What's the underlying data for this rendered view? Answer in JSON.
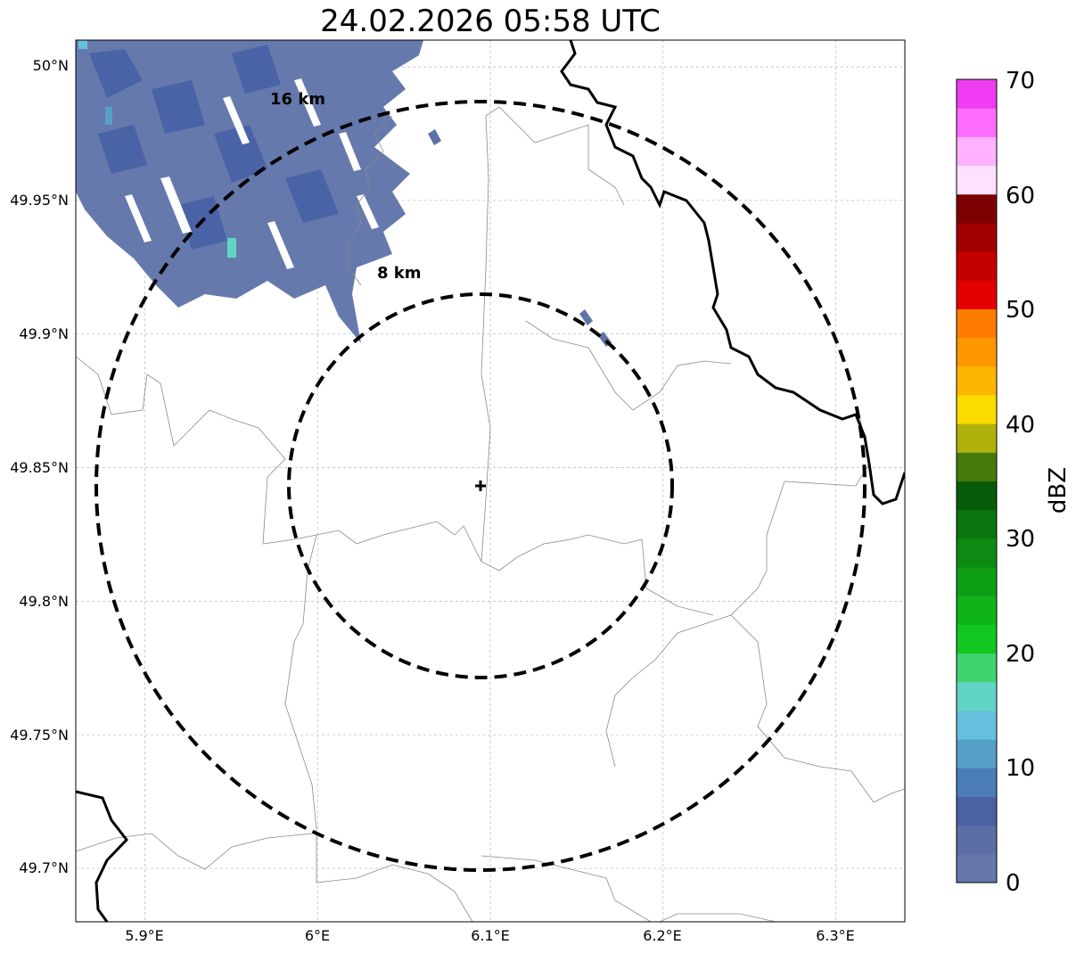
{
  "title": "24.02.2026 05:58 UTC",
  "map": {
    "lat_labels": [
      "50°N",
      "49.95°N",
      "49.9°N",
      "49.85°N",
      "49.8°N",
      "49.75°N",
      "49.7°N"
    ],
    "lon_labels": [
      "5.9°E",
      "6°E",
      "6.1°E",
      "6.2°E",
      "6.3°E"
    ],
    "lat_values": [
      50.0,
      49.95,
      49.9,
      49.85,
      49.8,
      49.75,
      49.7
    ],
    "lon_values": [
      5.9,
      6.0,
      6.1,
      6.2,
      6.3
    ],
    "extent": {
      "lon_min": 5.86,
      "lon_max": 6.34,
      "lat_min": 49.68,
      "lat_max": 50.01
    },
    "radar_site": {
      "lon": 6.095,
      "lat": 49.843
    },
    "rings": [
      {
        "radius_km": 8,
        "label": "8 km"
      },
      {
        "radius_km": 16,
        "label": "16 km"
      }
    ]
  },
  "colorbar": {
    "label": "dBZ",
    "ticks": [
      "0",
      "10",
      "20",
      "30",
      "40",
      "50",
      "60",
      "70"
    ],
    "tick_values": [
      0,
      10,
      20,
      30,
      40,
      50,
      60,
      70
    ],
    "colors": [
      "#6577a8",
      "#5b6ea6",
      "#4b62a2",
      "#4a7db5",
      "#56a0c8",
      "#64c0dc",
      "#62d4c6",
      "#3fd46e",
      "#12c71f",
      "#0fb41a",
      "#0e9e16",
      "#0d8a12",
      "#0a740e",
      "#065c08",
      "#467a0b",
      "#b0b10c",
      "#fcdb00",
      "#fdb700",
      "#fd9800",
      "#fd7b00",
      "#e40000",
      "#c50000",
      "#a10000",
      "#7d0000",
      "#ffe0ff",
      "#ffb3ff",
      "#ff6dff",
      "#f03cf0"
    ]
  }
}
